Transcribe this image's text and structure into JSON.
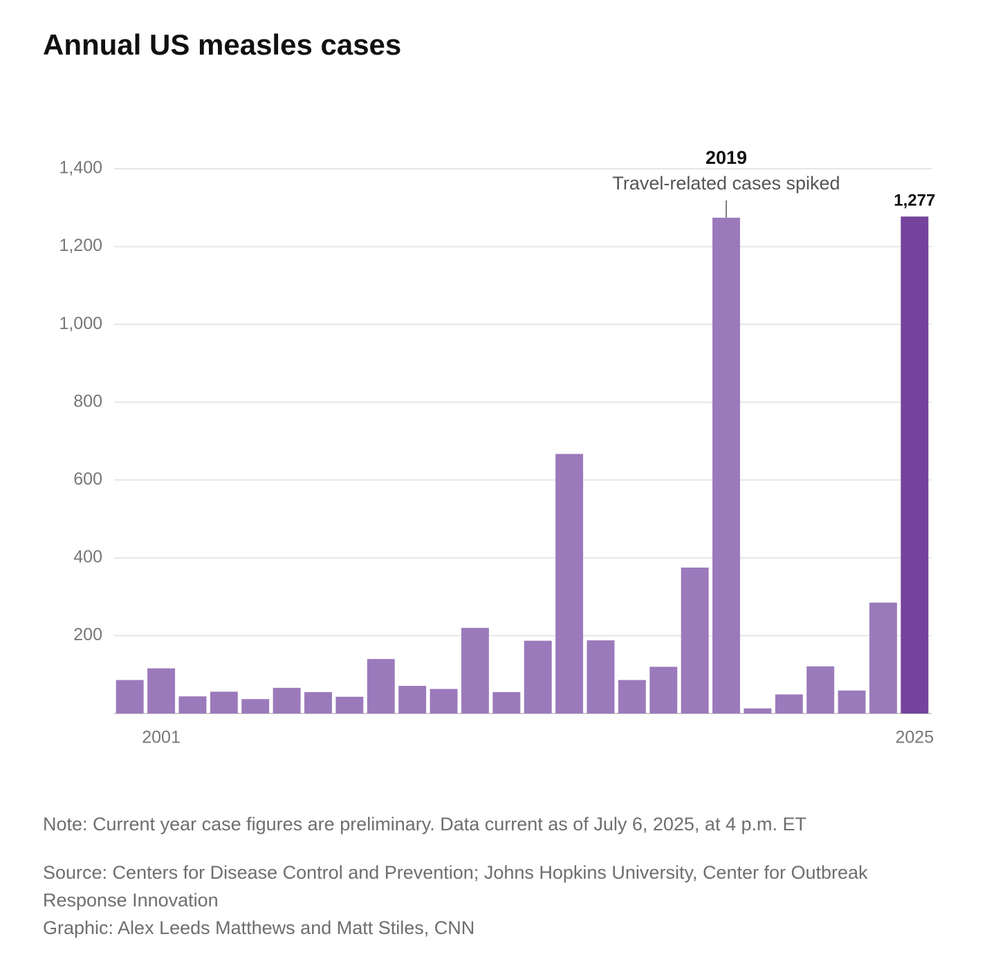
{
  "chart_data": {
    "type": "bar",
    "title": "Annual US measles cases",
    "categories": [
      null,
      "2001",
      null,
      null,
      null,
      null,
      null,
      null,
      null,
      null,
      null,
      null,
      null,
      null,
      null,
      null,
      null,
      null,
      null,
      null,
      null,
      null,
      null,
      null,
      null,
      "2025"
    ],
    "values": [
      86,
      116,
      44,
      56,
      37,
      66,
      55,
      43,
      140,
      71,
      63,
      220,
      55,
      187,
      667,
      188,
      86,
      120,
      375,
      1274,
      13,
      49,
      121,
      59,
      285,
      1277
    ],
    "value_labels": [
      null,
      null,
      null,
      null,
      null,
      null,
      null,
      null,
      null,
      null,
      null,
      null,
      null,
      null,
      null,
      null,
      null,
      null,
      null,
      null,
      null,
      null,
      null,
      null,
      null,
      "1,277"
    ],
    "colors": [
      "#9b7abb",
      "#9b7abb",
      "#9b7abb",
      "#9b7abb",
      "#9b7abb",
      "#9b7abb",
      "#9b7abb",
      "#9b7abb",
      "#9b7abb",
      "#9b7abb",
      "#9b7abb",
      "#9b7abb",
      "#9b7abb",
      "#9b7abb",
      "#9b7abb",
      "#9b7abb",
      "#9b7abb",
      "#9b7abb",
      "#9b7abb",
      "#9b7abb",
      "#9b7abb",
      "#9b7abb",
      "#9b7abb",
      "#9b7abb",
      "#9b7abb",
      "#74449c"
    ],
    "ylim": [
      0,
      1400
    ],
    "yticks": [
      200,
      400,
      600,
      800,
      {
        "value": 1000,
        "label": "1,000"
      },
      {
        "value": 1200,
        "label": "1,200"
      },
      {
        "value": 1400,
        "label": "1,400"
      }
    ],
    "grid": true,
    "annotations": [
      {
        "index": 19,
        "title": "2019",
        "text": "Travel-related cases spiked"
      }
    ],
    "note": "Note: Current year case figures are preliminary. Data current as of July 6, 2025, at 4 p.m. ET",
    "source": "Source: Centers for Disease Control and Prevention; Johns Hopkins University, Center for Outbreak Response Innovation",
    "credit": "Graphic: Alex Leeds Matthews and Matt Stiles, CNN"
  }
}
